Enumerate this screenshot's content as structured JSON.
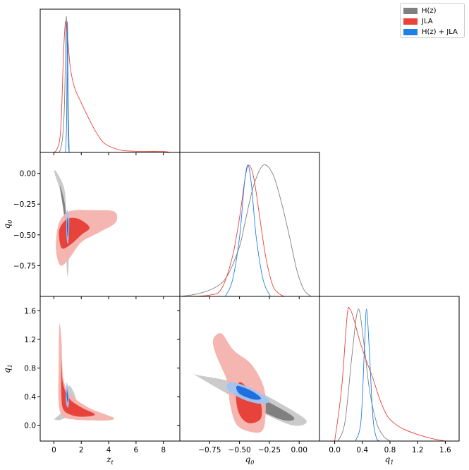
{
  "chart_data": {
    "type": "triangle",
    "params": [
      {
        "name": "zt",
        "ticks": [
          "0",
          "2",
          "4",
          "6",
          "8"
        ],
        "tick_values": [
          0,
          2,
          4,
          6,
          8
        ],
        "range": [
          -1,
          9.2
        ]
      },
      {
        "name": "q0",
        "ticks": [
          "−0.75",
          "−0.50",
          "−0.25",
          "0.00"
        ],
        "tick_values": [
          -0.75,
          -0.5,
          -0.25,
          0.0
        ],
        "range": [
          -1.0,
          0.17
        ]
      },
      {
        "name": "q1",
        "ticks": [
          "0.0",
          "0.4",
          "0.8",
          "1.2",
          "1.6"
        ],
        "tick_values": [
          0.0,
          0.4,
          0.8,
          1.2,
          1.6
        ],
        "range": [
          -0.22,
          1.8
        ]
      }
    ],
    "axis_labels": {
      "zt": {
        "main": "z",
        "sub": "t"
      },
      "q0": {
        "main": "q",
        "sub": "0"
      },
      "q1": {
        "main": "q",
        "sub": "1"
      }
    },
    "series": [
      {
        "name": "H(z)",
        "color": "#808080",
        "light": "#c8c8c8",
        "dark": "#808080"
      },
      {
        "name": "JLA",
        "color": "#e8433a",
        "light": "#f4b2ad",
        "dark": "#e8433a"
      },
      {
        "name": "H(z) + JLA",
        "color": "#1f80e8",
        "light": "#a0c4f2",
        "dark": "#1f6fe0"
      }
    ],
    "marginals": {
      "zt": {
        "H(z)": [
          [
            0.0,
            0
          ],
          [
            0.5,
            0.03
          ],
          [
            0.75,
            0.3
          ],
          [
            0.88,
            0.95
          ],
          [
            0.93,
            1.0
          ],
          [
            0.98,
            0.6
          ],
          [
            1.05,
            0.08
          ],
          [
            1.15,
            0
          ]
        ],
        "JLA": [
          [
            -0.3,
            0
          ],
          [
            0.2,
            0.02
          ],
          [
            0.5,
            0.18
          ],
          [
            0.7,
            0.75
          ],
          [
            0.85,
            1.0
          ],
          [
            1.0,
            0.88
          ],
          [
            1.2,
            0.65
          ],
          [
            1.5,
            0.5
          ],
          [
            2.0,
            0.38
          ],
          [
            2.5,
            0.27
          ],
          [
            3.0,
            0.17
          ],
          [
            3.5,
            0.09
          ],
          [
            4.0,
            0.05
          ],
          [
            5.0,
            0.015
          ],
          [
            6.5,
            0.008
          ],
          [
            8.0,
            0.008
          ],
          [
            8.5,
            0
          ]
        ],
        "H(z) + JLA": [
          [
            0.85,
            0
          ],
          [
            0.93,
            0.25
          ],
          [
            0.99,
            1.0
          ],
          [
            1.05,
            0.35
          ],
          [
            1.12,
            0
          ]
        ]
      },
      "q0": {
        "H(z)": [
          [
            -1.0,
            0.0
          ],
          [
            -0.85,
            0.02
          ],
          [
            -0.7,
            0.07
          ],
          [
            -0.6,
            0.16
          ],
          [
            -0.5,
            0.38
          ],
          [
            -0.45,
            0.58
          ],
          [
            -0.38,
            0.85
          ],
          [
            -0.3,
            1.0
          ],
          [
            -0.22,
            0.93
          ],
          [
            -0.15,
            0.72
          ],
          [
            -0.08,
            0.45
          ],
          [
            -0.02,
            0.2
          ],
          [
            0.04,
            0.05
          ],
          [
            0.1,
            0.0
          ]
        ],
        "JLA": [
          [
            -0.95,
            0.0
          ],
          [
            -0.75,
            0.01
          ],
          [
            -0.65,
            0.06
          ],
          [
            -0.56,
            0.3
          ],
          [
            -0.5,
            0.6
          ],
          [
            -0.45,
            0.92
          ],
          [
            -0.42,
            1.0
          ],
          [
            -0.38,
            0.9
          ],
          [
            -0.33,
            0.6
          ],
          [
            -0.28,
            0.3
          ],
          [
            -0.22,
            0.08
          ],
          [
            -0.15,
            0.01
          ],
          [
            -0.1,
            0.0
          ]
        ],
        "H(z) + JLA": [
          [
            -0.62,
            0.0
          ],
          [
            -0.56,
            0.12
          ],
          [
            -0.5,
            0.45
          ],
          [
            -0.46,
            0.85
          ],
          [
            -0.43,
            1.0
          ],
          [
            -0.4,
            0.85
          ],
          [
            -0.36,
            0.45
          ],
          [
            -0.3,
            0.12
          ],
          [
            -0.24,
            0.0
          ]
        ]
      },
      "q1": {
        "H(z)": [
          [
            0.05,
            0
          ],
          [
            0.15,
            0.15
          ],
          [
            0.25,
            0.65
          ],
          [
            0.34,
            1.0
          ],
          [
            0.42,
            0.75
          ],
          [
            0.5,
            0.4
          ],
          [
            0.6,
            0.15
          ],
          [
            0.7,
            0.04
          ],
          [
            0.8,
            0
          ]
        ],
        "JLA": [
          [
            0.0,
            0
          ],
          [
            0.1,
            0.4
          ],
          [
            0.18,
            0.95
          ],
          [
            0.22,
            1.0
          ],
          [
            0.28,
            0.92
          ],
          [
            0.35,
            0.78
          ],
          [
            0.45,
            0.62
          ],
          [
            0.55,
            0.48
          ],
          [
            0.65,
            0.32
          ],
          [
            0.75,
            0.2
          ],
          [
            0.85,
            0.14
          ],
          [
            1.0,
            0.09
          ],
          [
            1.2,
            0.05
          ],
          [
            1.4,
            0.02
          ],
          [
            1.6,
            0
          ]
        ],
        "H(z) + JLA": [
          [
            0.3,
            0
          ],
          [
            0.38,
            0.15
          ],
          [
            0.43,
            0.7
          ],
          [
            0.46,
            1.0
          ],
          [
            0.5,
            0.7
          ],
          [
            0.55,
            0.2
          ],
          [
            0.6,
            0.03
          ],
          [
            0.65,
            0
          ]
        ]
      }
    },
    "contours": {
      "q0_vs_zt": {
        "H(z)": {
          "outer": [
            [
              0.2,
              0.01
            ],
            [
              0.75,
              -0.12
            ],
            [
              0.9,
              -0.3
            ],
            [
              1.1,
              -0.55
            ],
            [
              1.05,
              -0.8
            ],
            [
              0.95,
              -0.8
            ],
            [
              0.85,
              -0.5
            ],
            [
              0.6,
              -0.2
            ],
            [
              0.05,
              0.0
            ]
          ],
          "inner": [
            [
              0.45,
              -0.1
            ],
            [
              0.8,
              -0.25
            ],
            [
              0.9,
              -0.45
            ],
            [
              0.85,
              -0.5
            ],
            [
              0.72,
              -0.32
            ],
            [
              0.5,
              -0.16
            ]
          ]
        },
        "JLA": {
          "outer": [
            [
              0.3,
              -0.43
            ],
            [
              0.8,
              -0.33
            ],
            [
              1.5,
              -0.3
            ],
            [
              2.8,
              -0.3
            ],
            [
              4.4,
              -0.31
            ],
            [
              4.5,
              -0.4
            ],
            [
              3.3,
              -0.48
            ],
            [
              2.0,
              -0.56
            ],
            [
              1.2,
              -0.68
            ],
            [
              0.5,
              -0.75
            ],
            [
              0.15,
              -0.62
            ]
          ],
          "inner": [
            [
              0.45,
              -0.44
            ],
            [
              1.0,
              -0.37
            ],
            [
              1.8,
              -0.37
            ],
            [
              2.6,
              -0.44
            ],
            [
              2.0,
              -0.5
            ],
            [
              1.2,
              -0.58
            ],
            [
              0.6,
              -0.61
            ],
            [
              0.38,
              -0.52
            ]
          ]
        },
        "H(z) + JLA": {
          "outer": [
            [
              0.95,
              -0.3
            ],
            [
              1.12,
              -0.38
            ],
            [
              1.05,
              -0.57
            ],
            [
              0.92,
              -0.5
            ]
          ],
          "inner": [
            [
              0.98,
              -0.36
            ],
            [
              1.06,
              -0.41
            ],
            [
              1.02,
              -0.52
            ],
            [
              0.96,
              -0.46
            ]
          ]
        }
      },
      "q1_vs_zt": {
        "H(z)": {
          "outer": [
            [
              1.05,
              0.55
            ],
            [
              1.6,
              0.38
            ],
            [
              1.45,
              0.2
            ],
            [
              0.55,
              0.08
            ],
            [
              0.05,
              0.08
            ],
            [
              0.1,
              0.1
            ],
            [
              0.65,
              0.22
            ]
          ],
          "inner": [
            [
              0.88,
              0.42
            ],
            [
              1.2,
              0.3
            ],
            [
              0.9,
              0.22
            ],
            [
              0.72,
              0.28
            ]
          ]
        },
        "JLA": {
          "outer": [
            [
              0.4,
              1.4
            ],
            [
              0.55,
              1.2
            ],
            [
              0.7,
              0.65
            ],
            [
              1.3,
              0.42
            ],
            [
              2.5,
              0.25
            ],
            [
              3.8,
              0.15
            ],
            [
              4.4,
              0.1
            ],
            [
              4.0,
              0.07
            ],
            [
              2.5,
              0.07
            ],
            [
              1.5,
              0.08
            ],
            [
              0.7,
              0.12
            ],
            [
              0.35,
              0.3
            ],
            [
              0.35,
              0.8
            ]
          ],
          "inner": [
            [
              0.55,
              0.9
            ],
            [
              0.65,
              0.6
            ],
            [
              1.1,
              0.38
            ],
            [
              2.0,
              0.25
            ],
            [
              3.0,
              0.15
            ],
            [
              2.0,
              0.12
            ],
            [
              1.2,
              0.15
            ],
            [
              0.7,
              0.22
            ],
            [
              0.55,
              0.4
            ]
          ]
        },
        "H(z) + JLA": {
          "outer": [
            [
              0.95,
              0.6
            ],
            [
              1.1,
              0.4
            ],
            [
              1.05,
              0.25
            ],
            [
              0.9,
              0.3
            ],
            [
              0.88,
              0.45
            ]
          ],
          "inner": [
            [
              0.96,
              0.5
            ],
            [
              1.05,
              0.38
            ],
            [
              1.0,
              0.32
            ],
            [
              0.94,
              0.4
            ]
          ]
        }
      },
      "q1_vs_q0": {
        "H(z)": {
          "outer": [
            [
              -0.85,
              0.7
            ],
            [
              -0.45,
              0.55
            ],
            [
              0.0,
              0.15
            ],
            [
              0.05,
              0.02
            ],
            [
              -0.1,
              0.02
            ],
            [
              -0.45,
              0.3
            ],
            [
              -0.85,
              0.68
            ]
          ],
          "inner": [
            [
              -0.6,
              0.55
            ],
            [
              -0.35,
              0.4
            ],
            [
              -0.05,
              0.12
            ],
            [
              -0.15,
              0.08
            ],
            [
              -0.45,
              0.32
            ]
          ]
        },
        "JLA": {
          "outer": [
            [
              -0.65,
              1.28
            ],
            [
              -0.55,
              1.05
            ],
            [
              -0.4,
              0.85
            ],
            [
              -0.3,
              0.55
            ],
            [
              -0.28,
              0.25
            ],
            [
              -0.3,
              -0.05
            ],
            [
              -0.38,
              -0.1
            ],
            [
              -0.52,
              0.0
            ],
            [
              -0.58,
              0.3
            ],
            [
              -0.6,
              0.6
            ],
            [
              -0.7,
              1.0
            ],
            [
              -0.72,
              1.2
            ]
          ],
          "inner": [
            [
              -0.5,
              0.6
            ],
            [
              -0.42,
              0.5
            ],
            [
              -0.33,
              0.35
            ],
            [
              -0.32,
              0.1
            ],
            [
              -0.42,
              0.03
            ],
            [
              -0.5,
              0.15
            ],
            [
              -0.53,
              0.4
            ]
          ]
        },
        "H(z) + JLA": {
          "outer": [
            [
              -0.58,
              0.6
            ],
            [
              -0.45,
              0.55
            ],
            [
              -0.3,
              0.42
            ],
            [
              -0.25,
              0.33
            ],
            [
              -0.33,
              0.3
            ],
            [
              -0.48,
              0.37
            ],
            [
              -0.6,
              0.5
            ]
          ],
          "inner": [
            [
              -0.52,
              0.55
            ],
            [
              -0.4,
              0.48
            ],
            [
              -0.32,
              0.38
            ],
            [
              -0.38,
              0.36
            ],
            [
              -0.5,
              0.44
            ]
          ]
        }
      }
    },
    "legend": {
      "position": "top-right"
    }
  }
}
